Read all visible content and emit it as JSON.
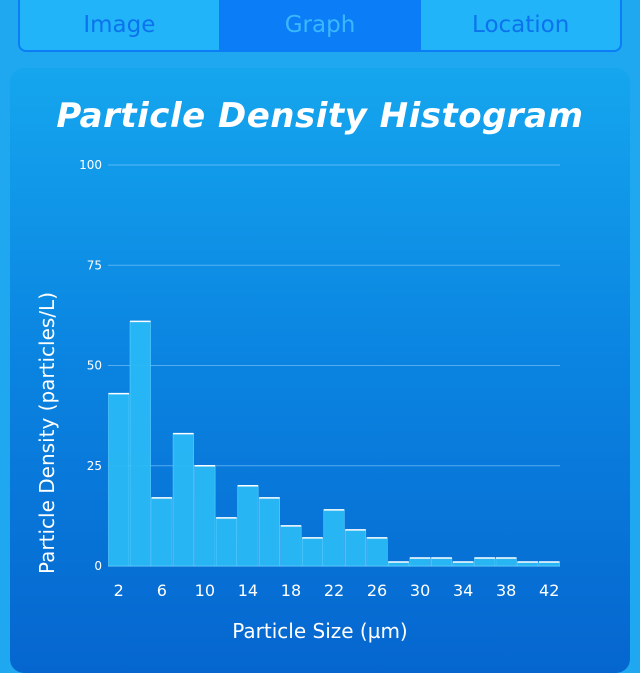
{
  "tabs": [
    {
      "label": "Image",
      "active": false
    },
    {
      "label": "Graph",
      "active": true
    },
    {
      "label": "Location",
      "active": false
    }
  ],
  "colors": {
    "accent": "#0a7df7",
    "bar_fill": "#29b8f6",
    "bar_edge": "#ffffff",
    "grid": "#8fd3ff"
  },
  "chart_data": {
    "type": "bar",
    "title": "Particle Density Histogram",
    "xlabel": "Particle Size (µm)",
    "ylabel": "Particle Density (particles/L)",
    "ylim": [
      0,
      100
    ],
    "yticks": [
      0,
      25,
      50,
      75,
      100
    ],
    "xticks": [
      2,
      6,
      10,
      14,
      18,
      22,
      26,
      30,
      34,
      38,
      42
    ],
    "grid": true,
    "bin_width": 2,
    "x": [
      2,
      4,
      6,
      8,
      10,
      12,
      14,
      16,
      18,
      20,
      22,
      24,
      26,
      28,
      30,
      32,
      34,
      36,
      38,
      40,
      42
    ],
    "values": [
      43,
      61,
      17,
      33,
      25,
      12,
      20,
      17,
      10,
      7,
      14,
      9,
      7,
      1,
      2,
      2,
      1,
      2,
      2,
      1,
      1
    ]
  }
}
